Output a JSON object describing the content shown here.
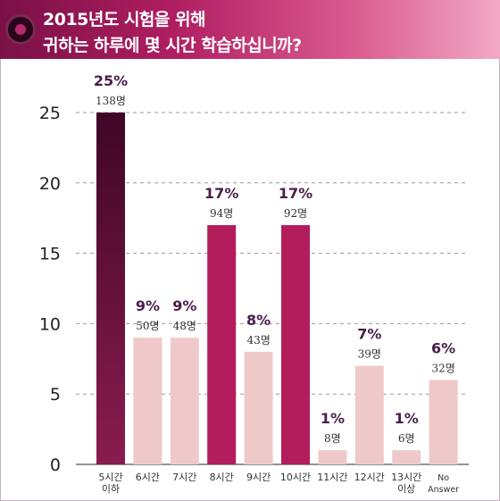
{
  "title_lines": [
    "2015년도 시험을 위해",
    "귀하는 하루에 몇 시간 학습하십니까?"
  ],
  "colors": {
    "highlight": "#b31d5c",
    "top": "#4a0a2e",
    "normal": "#efc9c9",
    "percent_text": "#4a1d4a"
  },
  "chart_data": {
    "type": "bar",
    "categories": [
      [
        "5시간",
        "이하"
      ],
      [
        "6시간"
      ],
      [
        "7시간"
      ],
      [
        "8시간"
      ],
      [
        "9시간"
      ],
      [
        "10시간"
      ],
      [
        "11시간"
      ],
      [
        "12시간"
      ],
      [
        "13시간",
        "이상"
      ],
      [
        "No",
        "Answer"
      ]
    ],
    "values": [
      25,
      9,
      9,
      17,
      8,
      17,
      1,
      7,
      1,
      6
    ],
    "percent_labels": [
      "25%",
      "9%",
      "9%",
      "17%",
      "8%",
      "17%",
      "1%",
      "7%",
      "1%",
      "6%"
    ],
    "count_labels": [
      "138명",
      "50명",
      "48명",
      "94명",
      "43명",
      "92명",
      "8명",
      "39명",
      "6명",
      "32명"
    ],
    "bar_styles": [
      "top",
      "normal",
      "normal",
      "highlight",
      "normal",
      "highlight",
      "normal",
      "normal",
      "normal",
      "normal"
    ],
    "yticks": [
      0,
      5,
      10,
      15,
      20,
      25
    ],
    "ylim": [
      0,
      25
    ],
    "grid": "dashed-horizontal"
  }
}
